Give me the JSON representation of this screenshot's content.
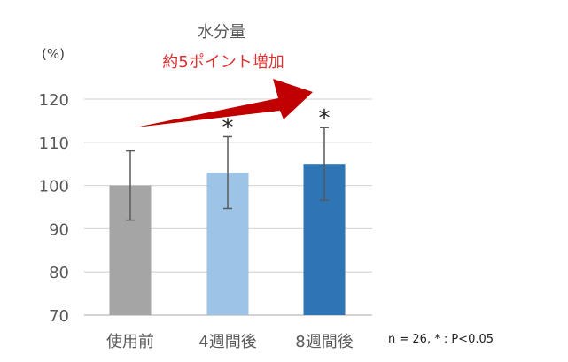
{
  "chart_data": {
    "type": "bar",
    "title": "水分量",
    "subtitle": "約5ポイント増加",
    "ylabel": "(%)",
    "ylim": [
      70,
      120
    ],
    "yticks": [
      70,
      80,
      90,
      100,
      110,
      120
    ],
    "grid": true,
    "categories": [
      "使用前",
      "4週間後",
      "8週間後"
    ],
    "values": [
      100,
      103,
      105
    ],
    "error": [
      8,
      8.3,
      8.4
    ],
    "significance": [
      "",
      "*",
      "*"
    ],
    "colors": [
      "#a5a5a5",
      "#9dc3e6",
      "#2e75b6"
    ],
    "subtitle_color": "#e03030",
    "arrow_color": "#c00000",
    "note": "n = 26, * : P<0.05"
  }
}
